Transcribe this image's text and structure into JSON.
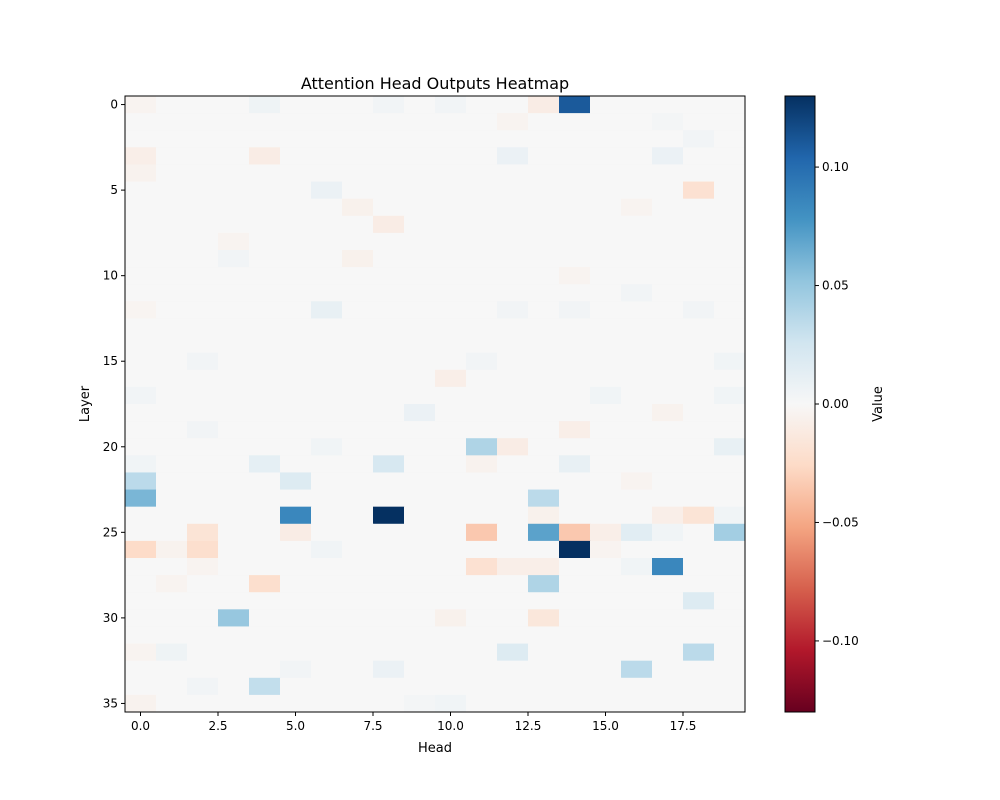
{
  "chart_data": {
    "type": "heatmap",
    "title": "Attention Head Outputs Heatmap",
    "xlabel": "Head",
    "ylabel": "Layer",
    "n_rows": 36,
    "n_cols": 20,
    "default_value": 0,
    "colormap": "RdBu_r",
    "vmin": -0.13,
    "vmax": 0.13,
    "xlim": [
      -0.5,
      19.5
    ],
    "ylim": [
      35.5,
      -0.5
    ],
    "x_ticks": [
      0,
      2.5,
      5,
      7.5,
      10,
      12.5,
      15,
      17.5
    ],
    "x_tick_labels": [
      "0.0",
      "2.5",
      "5.0",
      "7.5",
      "10.0",
      "12.5",
      "15.0",
      "17.5"
    ],
    "y_ticks": [
      0,
      5,
      10,
      15,
      20,
      25,
      30,
      35
    ],
    "y_tick_labels": [
      "0",
      "5",
      "10",
      "15",
      "20",
      "25",
      "30",
      "35"
    ],
    "colorbar": {
      "label": "Value",
      "ticks": [
        0.1,
        0.05,
        0.0,
        -0.05,
        -0.1
      ],
      "tick_labels": [
        "0.10",
        "0.05",
        "0.00",
        "−0.05",
        "−0.10"
      ]
    },
    "cells": [
      [
        0,
        0,
        -0.004
      ],
      [
        0,
        4,
        0.006
      ],
      [
        0,
        8,
        0.004
      ],
      [
        0,
        10,
        0.004
      ],
      [
        0,
        13,
        -0.01
      ],
      [
        0,
        14,
        0.11
      ],
      [
        1,
        12,
        -0.004
      ],
      [
        1,
        17,
        0.003
      ],
      [
        2,
        18,
        0.004
      ],
      [
        3,
        0,
        -0.008
      ],
      [
        3,
        4,
        -0.01
      ],
      [
        3,
        12,
        0.008
      ],
      [
        3,
        17,
        0.008
      ],
      [
        4,
        0,
        -0.005
      ],
      [
        5,
        6,
        0.008
      ],
      [
        5,
        18,
        -0.02
      ],
      [
        6,
        7,
        -0.006
      ],
      [
        6,
        16,
        -0.004
      ],
      [
        7,
        8,
        -0.01
      ],
      [
        8,
        3,
        -0.004
      ],
      [
        9,
        3,
        0.004
      ],
      [
        9,
        7,
        -0.006
      ],
      [
        10,
        14,
        -0.004
      ],
      [
        11,
        16,
        0.004
      ],
      [
        12,
        0,
        -0.003
      ],
      [
        12,
        6,
        0.01
      ],
      [
        12,
        12,
        0.004
      ],
      [
        12,
        14,
        0.004
      ],
      [
        12,
        18,
        0.004
      ],
      [
        15,
        2,
        0.004
      ],
      [
        15,
        11,
        0.004
      ],
      [
        15,
        19,
        0.005
      ],
      [
        16,
        10,
        -0.008
      ],
      [
        17,
        0,
        0.004
      ],
      [
        17,
        15,
        0.005
      ],
      [
        17,
        19,
        0.005
      ],
      [
        18,
        9,
        0.008
      ],
      [
        18,
        17,
        -0.005
      ],
      [
        19,
        2,
        0.004
      ],
      [
        19,
        14,
        -0.008
      ],
      [
        20,
        6,
        0.005
      ],
      [
        20,
        11,
        0.04
      ],
      [
        20,
        12,
        -0.01
      ],
      [
        20,
        19,
        0.01
      ],
      [
        21,
        0,
        0.005
      ],
      [
        21,
        4,
        0.012
      ],
      [
        21,
        8,
        0.022
      ],
      [
        21,
        11,
        -0.005
      ],
      [
        21,
        14,
        0.01
      ],
      [
        22,
        0,
        0.035
      ],
      [
        22,
        5,
        0.018
      ],
      [
        22,
        16,
        -0.004
      ],
      [
        23,
        0,
        0.06
      ],
      [
        23,
        13,
        0.035
      ],
      [
        24,
        5,
        0.085
      ],
      [
        24,
        8,
        0.13
      ],
      [
        24,
        13,
        -0.006
      ],
      [
        24,
        17,
        -0.008
      ],
      [
        24,
        18,
        -0.018
      ],
      [
        24,
        19,
        0.005
      ],
      [
        25,
        2,
        -0.018
      ],
      [
        25,
        5,
        -0.01
      ],
      [
        25,
        11,
        -0.035
      ],
      [
        25,
        13,
        0.07
      ],
      [
        25,
        14,
        -0.035
      ],
      [
        25,
        15,
        -0.008
      ],
      [
        25,
        16,
        0.015
      ],
      [
        25,
        17,
        0.005
      ],
      [
        25,
        19,
        0.045
      ],
      [
        26,
        0,
        -0.025
      ],
      [
        26,
        1,
        -0.005
      ],
      [
        26,
        2,
        -0.022
      ],
      [
        26,
        6,
        0.005
      ],
      [
        26,
        14,
        0.13
      ],
      [
        26,
        15,
        -0.004
      ],
      [
        27,
        2,
        -0.004
      ],
      [
        27,
        11,
        -0.02
      ],
      [
        27,
        12,
        -0.008
      ],
      [
        27,
        13,
        -0.008
      ],
      [
        27,
        16,
        0.005
      ],
      [
        27,
        17,
        0.085
      ],
      [
        28,
        1,
        -0.004
      ],
      [
        28,
        4,
        -0.022
      ],
      [
        28,
        13,
        0.04
      ],
      [
        29,
        18,
        0.018
      ],
      [
        30,
        3,
        0.05
      ],
      [
        30,
        10,
        -0.006
      ],
      [
        30,
        13,
        -0.015
      ],
      [
        32,
        0,
        -0.004
      ],
      [
        32,
        1,
        0.006
      ],
      [
        32,
        12,
        0.018
      ],
      [
        32,
        18,
        0.035
      ],
      [
        33,
        5,
        0.004
      ],
      [
        33,
        8,
        0.008
      ],
      [
        33,
        16,
        0.035
      ],
      [
        34,
        2,
        0.004
      ],
      [
        34,
        4,
        0.032
      ],
      [
        35,
        0,
        -0.005
      ],
      [
        35,
        9,
        0.003
      ],
      [
        35,
        10,
        0.005
      ]
    ]
  }
}
